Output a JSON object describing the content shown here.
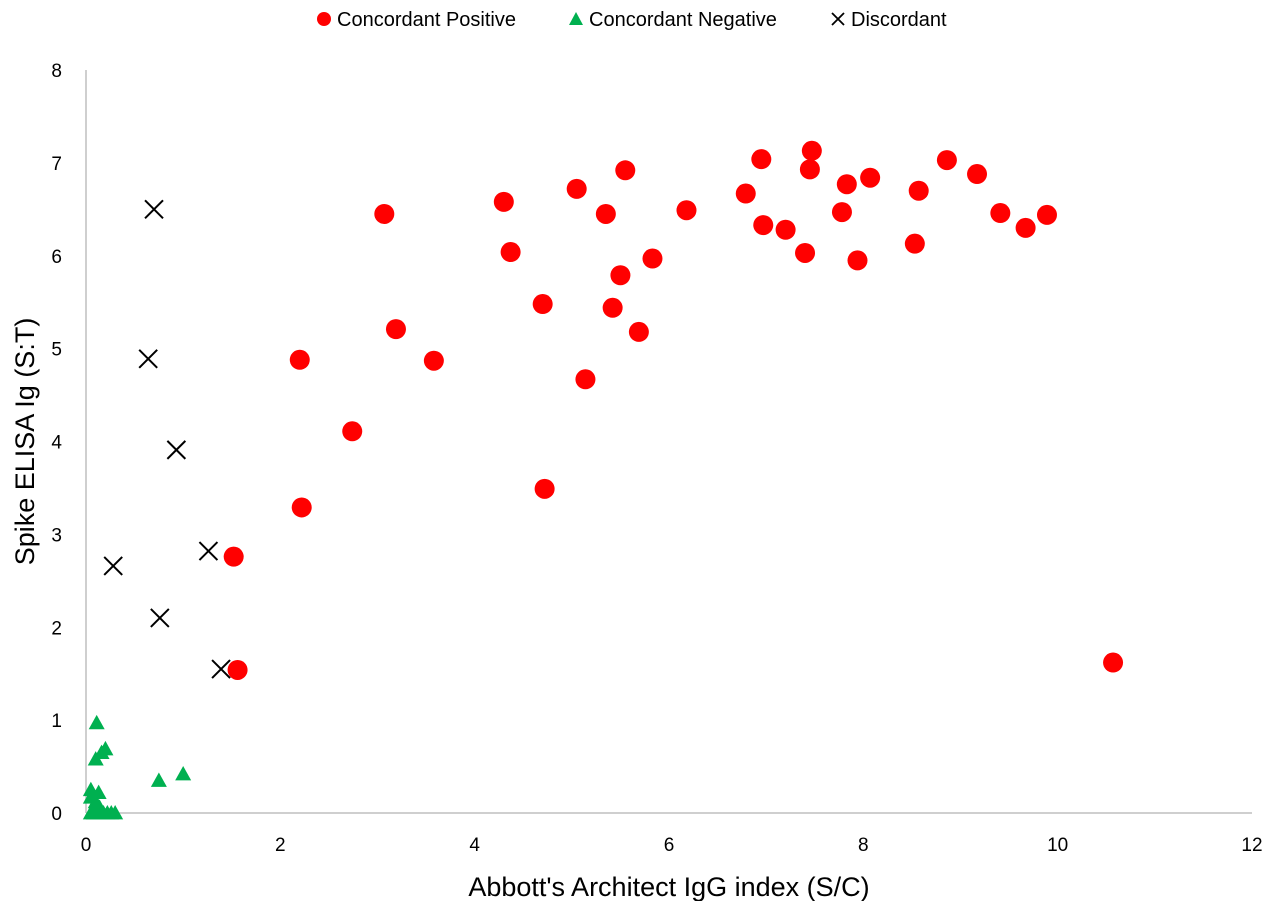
{
  "chart_data": {
    "type": "scatter",
    "xlabel": "Abbott's Architect IgG index (S/C)",
    "ylabel": "Spike ELISA Ig (S:T)",
    "xlim": [
      0,
      12
    ],
    "ylim": [
      0,
      8
    ],
    "x_ticks": [
      "0",
      "2",
      "4",
      "6",
      "8",
      "10",
      "12"
    ],
    "y_ticks": [
      "0",
      "1",
      "2",
      "3",
      "4",
      "5",
      "6",
      "7",
      "8"
    ],
    "grid": false,
    "legend_position": "top-center",
    "series": [
      {
        "name": "Concordant Positive",
        "marker": "circle",
        "color": "#ff0000",
        "points": [
          [
            1.52,
            2.76
          ],
          [
            1.56,
            1.54
          ],
          [
            2.2,
            4.88
          ],
          [
            2.22,
            3.29
          ],
          [
            2.74,
            4.11
          ],
          [
            3.07,
            6.45
          ],
          [
            3.19,
            5.21
          ],
          [
            3.58,
            4.87
          ],
          [
            4.3,
            6.58
          ],
          [
            4.37,
            6.04
          ],
          [
            4.7,
            5.48
          ],
          [
            4.72,
            3.49
          ],
          [
            5.05,
            6.72
          ],
          [
            5.14,
            4.67
          ],
          [
            5.35,
            6.45
          ],
          [
            5.42,
            5.44
          ],
          [
            5.5,
            5.79
          ],
          [
            5.55,
            6.92
          ],
          [
            5.69,
            5.18
          ],
          [
            5.83,
            5.97
          ],
          [
            6.18,
            6.49
          ],
          [
            6.79,
            6.67
          ],
          [
            6.95,
            7.04
          ],
          [
            6.97,
            6.33
          ],
          [
            7.2,
            6.28
          ],
          [
            7.4,
            6.03
          ],
          [
            7.45,
            6.93
          ],
          [
            7.47,
            7.13
          ],
          [
            7.78,
            6.47
          ],
          [
            7.83,
            6.77
          ],
          [
            7.94,
            5.95
          ],
          [
            8.07,
            6.84
          ],
          [
            8.53,
            6.13
          ],
          [
            8.57,
            6.7
          ],
          [
            8.86,
            7.03
          ],
          [
            9.17,
            6.88
          ],
          [
            9.41,
            6.46
          ],
          [
            9.67,
            6.3
          ],
          [
            9.89,
            6.44
          ],
          [
            10.57,
            1.62
          ]
        ]
      },
      {
        "name": "Concordant Negative",
        "marker": "triangle",
        "color": "#00b050",
        "points": [
          [
            0.05,
            0.25
          ],
          [
            0.1,
            0.58
          ],
          [
            0.11,
            0.97
          ],
          [
            0.13,
            0.22
          ],
          [
            0.16,
            0.65
          ],
          [
            0.2,
            0.69
          ],
          [
            0.75,
            0.35
          ],
          [
            1.0,
            0.42
          ],
          [
            0.05,
            0.0
          ],
          [
            0.08,
            0.0
          ],
          [
            0.12,
            0.0
          ],
          [
            0.15,
            0.0
          ],
          [
            0.18,
            0.0
          ],
          [
            0.22,
            0.0
          ],
          [
            0.26,
            0.0
          ],
          [
            0.3,
            0.0
          ],
          [
            0.1,
            0.12
          ],
          [
            0.14,
            0.06
          ],
          [
            0.05,
            0.17
          ]
        ]
      },
      {
        "name": "Discordant",
        "marker": "x",
        "color": "#000000",
        "points": [
          [
            0.28,
            2.66
          ],
          [
            0.64,
            4.89
          ],
          [
            0.7,
            6.5
          ],
          [
            0.76,
            2.1
          ],
          [
            0.93,
            3.91
          ],
          [
            1.26,
            2.82
          ],
          [
            1.39,
            1.55
          ]
        ]
      }
    ]
  }
}
